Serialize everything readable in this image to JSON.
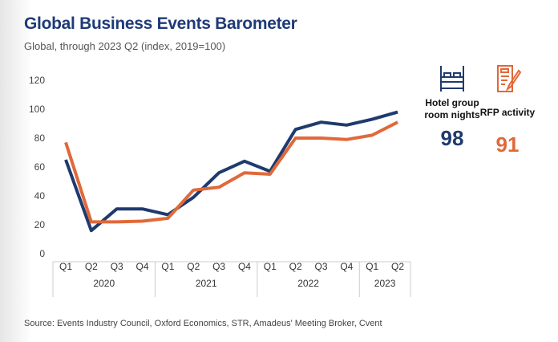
{
  "title": "Global Business Events Barometer",
  "subtitle": "Global, through 2023 Q2 (index, 2019=100)",
  "source": "Source: Events Industry Council, Oxford Economics, STR, Amadeus' Meeting Broker, Cvent",
  "kpis": [
    {
      "icon": "bed-icon",
      "label1": "Hotel group",
      "label2": "room nights",
      "value": "98",
      "color": "#1f3a6e"
    },
    {
      "icon": "document-pen-icon",
      "label1": "RFP activity",
      "label2": "",
      "value": "91",
      "color": "#e0693a"
    }
  ],
  "chart_data": {
    "type": "line",
    "title": "Global Business Events Barometer",
    "categories": [
      "Q1",
      "Q2",
      "Q3",
      "Q4",
      "Q1",
      "Q2",
      "Q3",
      "Q4",
      "Q1",
      "Q2",
      "Q3",
      "Q4",
      "Q1",
      "Q2"
    ],
    "years": [
      {
        "label": "2020",
        "count": 4
      },
      {
        "label": "2021",
        "count": 4
      },
      {
        "label": "2022",
        "count": 4
      },
      {
        "label": "2023",
        "count": 2
      }
    ],
    "ylim": [
      0,
      120
    ],
    "yticks": [
      0,
      20,
      40,
      60,
      80,
      100,
      120
    ],
    "grid": false,
    "series": [
      {
        "name": "Hotel group room nights",
        "color": "#1f3a6e",
        "values": [
          65,
          16,
          31,
          31,
          27,
          39,
          56,
          64,
          57,
          86,
          91,
          89,
          93,
          98
        ]
      },
      {
        "name": "RFP activity",
        "color": "#e0693a",
        "values": [
          77,
          22,
          22,
          22.5,
          24.5,
          44,
          46,
          56,
          55,
          80,
          80,
          79,
          82,
          91
        ]
      }
    ]
  }
}
